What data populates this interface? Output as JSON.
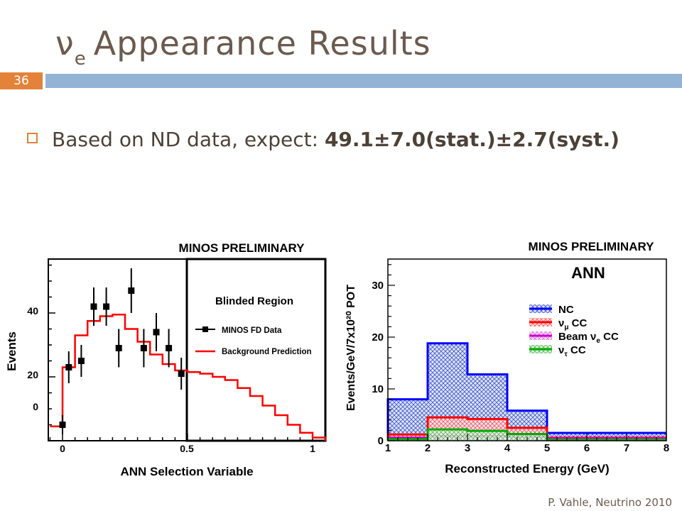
{
  "slide": {
    "title_symbol": "ν",
    "title_subscript": "e",
    "title_text": "Appearance Results",
    "number": "36",
    "bullet_prefix": "Based on ND data, expect:",
    "bullet_value": "49.1±7.0(stat.)±2.7(syst.)",
    "footer": "P. Vahle, Neutrino 2010",
    "colors": {
      "title": "#6b5a4e",
      "number_bg": "#e3833a",
      "header_bar": "#93b3d5",
      "bullet_box": "#d9833a"
    }
  },
  "chart_data": [
    {
      "type": "line",
      "title": "MINOS PRELIMINARY",
      "xlabel": "ANN Selection Variable",
      "ylabel": "Events",
      "xlim": [
        -0.1,
        1.05
      ],
      "ylim": [
        0,
        60
      ],
      "x_tick_labels": [
        "0",
        "0.5",
        "1"
      ],
      "y_tick_labels": [
        "0",
        "20",
        "40"
      ],
      "region_label": "Blinded Region",
      "region_start": 0.5,
      "legend": [
        "MINOS FD Data",
        "Background Prediction"
      ],
      "series": [
        {
          "name": "MINOS FD Data",
          "type": "scatter",
          "color": "#000000",
          "points": [
            {
              "x": 0.0,
              "y": 5,
              "err": 3
            },
            {
              "x": 0.025,
              "y": 23,
              "err": 5
            },
            {
              "x": 0.075,
              "y": 25,
              "err": 5
            },
            {
              "x": 0.125,
              "y": 42,
              "err": 6
            },
            {
              "x": 0.175,
              "y": 42,
              "err": 6
            },
            {
              "x": 0.225,
              "y": 29,
              "err": 6
            },
            {
              "x": 0.275,
              "y": 47,
              "err": 7
            },
            {
              "x": 0.325,
              "y": 29,
              "err": 6
            },
            {
              "x": 0.375,
              "y": 34,
              "err": 6
            },
            {
              "x": 0.425,
              "y": 29,
              "err": 6
            },
            {
              "x": 0.475,
              "y": 21,
              "err": 5
            }
          ]
        },
        {
          "name": "Background Prediction",
          "type": "step",
          "color": "#ff0000",
          "edges": [
            -0.05,
            0.0,
            0.05,
            0.1,
            0.15,
            0.2,
            0.25,
            0.3,
            0.35,
            0.4,
            0.45,
            0.5,
            0.55,
            0.6,
            0.65,
            0.7,
            0.75,
            0.8,
            0.85,
            0.9,
            0.95,
            1.0,
            1.05
          ],
          "values": [
            4.5,
            23,
            33,
            37.5,
            39,
            39.5,
            35,
            31,
            27,
            24,
            22,
            21.5,
            21,
            20,
            19,
            16.5,
            14,
            11,
            8,
            5,
            2.5,
            1
          ]
        }
      ]
    },
    {
      "type": "bar",
      "title": "MINOS PRELIMINARY",
      "subtitle": "ANN",
      "xlabel": "Reconstructed Energy (GeV)",
      "ylabel": "Events/GeV/7x10²⁰ POT",
      "xlim": [
        1,
        8
      ],
      "ylim": [
        0,
        36
      ],
      "x_tick_labels": [
        "1",
        "2",
        "3",
        "4",
        "5",
        "6",
        "7",
        "8"
      ],
      "y_tick_labels": [
        "0",
        "10",
        "20",
        "30"
      ],
      "bin_edges": [
        1,
        2,
        3,
        4,
        5,
        8
      ],
      "legend_position": "top-right",
      "series": [
        {
          "name": "NC",
          "label_main": "NC",
          "label_sub": "",
          "label_suffix": "",
          "color": "#0000ff",
          "fill": "#3b55c8",
          "values": [
            8,
            18.8,
            12.8,
            5.8,
            1.5
          ]
        },
        {
          "name": "νμ CC",
          "label_main": "ν",
          "label_sub": "μ",
          "label_suffix": " CC",
          "color": "#ff0000",
          "fill": "#ff5a5a",
          "values": [
            1.2,
            4.5,
            4.2,
            2.5,
            0.6
          ]
        },
        {
          "name": "Beam νe CC",
          "label_main": "Beam ν",
          "label_sub": "e",
          "label_suffix": " CC",
          "color": "#cc00cc",
          "fill": "#d870d8",
          "values": [
            0.6,
            0.9,
            0.9,
            0.8,
            0.5
          ]
        },
        {
          "name": "ντ CC",
          "label_main": "ν",
          "label_sub": "τ",
          "label_suffix": " CC",
          "color": "#00aa00",
          "fill": "#55bb55",
          "values": [
            0.3,
            2.2,
            1.9,
            1.3,
            0.2
          ]
        }
      ]
    }
  ]
}
